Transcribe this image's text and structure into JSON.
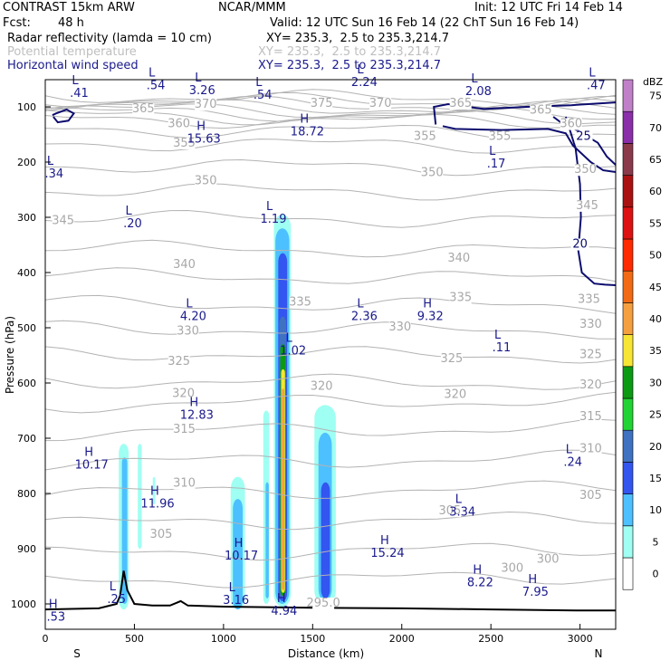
{
  "header": {
    "model": "CONTRAST 15km ARW",
    "center": "NCAR/MMM",
    "init": "Init: 12 UTC Fri 14 Feb 14",
    "fcst_label": "Fcst:",
    "fcst_value": "48 h",
    "valid": "Valid: 12 UTC Sun 16 Feb 14 (22 ChT Sun 16 Feb 14)",
    "fields": [
      {
        "name": "Radar reflectivity (lamda = 10 cm)",
        "xy": "XY= 235.3,  2.5 to 235.3,214.7",
        "color": "#000000"
      },
      {
        "name": "Potential temperature",
        "xy": "XY= 235.3,  2.5 to 235.3,214.7",
        "color": "#bfbfbf"
      },
      {
        "name": "Horizontal wind speed",
        "xy": "XY= 235.3,  2.5 to 235.3,214.7",
        "color": "#1a1a8c"
      }
    ]
  },
  "chart_data": {
    "type": "cross-section",
    "xlabel": "Distance (km)",
    "ylabel": "Pressure (hPa)",
    "xlim": [
      0,
      3200
    ],
    "ylim": [
      1020,
      50
    ],
    "x_ticks": [
      0,
      500,
      1000,
      1500,
      2000,
      2500,
      3000
    ],
    "y_ticks": [
      100,
      200,
      300,
      400,
      500,
      600,
      700,
      800,
      900,
      1000
    ],
    "x_endpoints": {
      "left": "S",
      "right": "N"
    },
    "colorbar": {
      "unit": "dBZ",
      "levels": [
        0,
        5,
        10,
        15,
        20,
        25,
        30,
        35,
        40,
        45,
        50,
        55,
        60,
        65,
        70,
        75
      ],
      "colors": [
        "#ffffff",
        "#9ffff2",
        "#4dc0ff",
        "#3355f0",
        "#3f72c0",
        "#22d433",
        "#0d9a13",
        "#f6e533",
        "#f5a040",
        "#f26b14",
        "#ff2a00",
        "#dd1111",
        "#aa1212",
        "#8a3a4a",
        "#8a2eaa",
        "#c080c8"
      ]
    },
    "theta_labels": [
      {
        "text": "365",
        "x": 550,
        "p": 110
      },
      {
        "text": "370",
        "x": 900,
        "p": 102
      },
      {
        "text": "375",
        "x": 1550,
        "p": 100
      },
      {
        "text": "370",
        "x": 1880,
        "p": 100
      },
      {
        "text": "365",
        "x": 2330,
        "p": 100
      },
      {
        "text": "365",
        "x": 2780,
        "p": 112
      },
      {
        "text": "360",
        "x": 750,
        "p": 137
      },
      {
        "text": "360",
        "x": 2950,
        "p": 137
      },
      {
        "text": "355",
        "x": 780,
        "p": 172
      },
      {
        "text": "355",
        "x": 2130,
        "p": 160
      },
      {
        "text": "355",
        "x": 2550,
        "p": 160
      },
      {
        "text": "350",
        "x": 900,
        "p": 240
      },
      {
        "text": "350",
        "x": 2170,
        "p": 225
      },
      {
        "text": "350",
        "x": 3030,
        "p": 220
      },
      {
        "text": "345",
        "x": 100,
        "p": 312
      },
      {
        "text": "345",
        "x": 3040,
        "p": 285
      },
      {
        "text": "340",
        "x": 780,
        "p": 392
      },
      {
        "text": "340",
        "x": 2320,
        "p": 380
      },
      {
        "text": "335",
        "x": 1430,
        "p": 460
      },
      {
        "text": "335",
        "x": 2330,
        "p": 452
      },
      {
        "text": "335",
        "x": 3050,
        "p": 455
      },
      {
        "text": "330",
        "x": 800,
        "p": 512
      },
      {
        "text": "330",
        "x": 1990,
        "p": 505
      },
      {
        "text": "330",
        "x": 3060,
        "p": 500
      },
      {
        "text": "325",
        "x": 750,
        "p": 567
      },
      {
        "text": "325",
        "x": 2280,
        "p": 562
      },
      {
        "text": "325",
        "x": 3060,
        "p": 555
      },
      {
        "text": "320",
        "x": 775,
        "p": 625
      },
      {
        "text": "320",
        "x": 1550,
        "p": 612
      },
      {
        "text": "320",
        "x": 2300,
        "p": 627
      },
      {
        "text": "320",
        "x": 3060,
        "p": 610
      },
      {
        "text": "315",
        "x": 780,
        "p": 690
      },
      {
        "text": "315",
        "x": 3060,
        "p": 667
      },
      {
        "text": "310",
        "x": 780,
        "p": 788
      },
      {
        "text": "310",
        "x": 3060,
        "p": 725
      },
      {
        "text": "305",
        "x": 650,
        "p": 880
      },
      {
        "text": "305",
        "x": 2270,
        "p": 838
      },
      {
        "text": "305",
        "x": 3060,
        "p": 810
      },
      {
        "text": "300",
        "x": 2620,
        "p": 942
      },
      {
        "text": "300",
        "x": 2820,
        "p": 925
      },
      {
        "text": "295.0",
        "x": 1560,
        "p": 1005
      }
    ],
    "wind_labels": [
      {
        "text": "25",
        "x": 3020,
        "p": 160
      },
      {
        "text": "20",
        "x": 3000,
        "p": 355
      }
    ],
    "extrema": [
      {
        "kind": "L",
        "value": ".41",
        "x": 190,
        "p": 82
      },
      {
        "kind": "L",
        "value": ".54",
        "x": 620,
        "p": 68
      },
      {
        "kind": "L",
        "value": "3.26",
        "x": 880,
        "p": 77
      },
      {
        "kind": "L",
        "value": ".54",
        "x": 1220,
        "p": 85
      },
      {
        "kind": "L",
        "value": "2.24",
        "x": 1790,
        "p": 62
      },
      {
        "kind": "L",
        "value": "2.08",
        "x": 2430,
        "p": 79
      },
      {
        "kind": "L",
        "value": ".47",
        "x": 3090,
        "p": 68
      },
      {
        "kind": "H",
        "value": "15.63",
        "x": 890,
        "p": 165
      },
      {
        "kind": "H",
        "value": "18.72",
        "x": 1470,
        "p": 152
      },
      {
        "kind": "L",
        "value": ".34",
        "x": 50,
        "p": 228
      },
      {
        "kind": "L",
        "value": ".17",
        "x": 2530,
        "p": 210
      },
      {
        "kind": "L",
        "value": ".20",
        "x": 490,
        "p": 318
      },
      {
        "kind": "L",
        "value": "1.19",
        "x": 1280,
        "p": 310
      },
      {
        "kind": "L",
        "value": "4.20",
        "x": 830,
        "p": 486
      },
      {
        "kind": "L",
        "value": "2.36",
        "x": 1790,
        "p": 486
      },
      {
        "kind": "H",
        "value": "9.32",
        "x": 2160,
        "p": 486
      },
      {
        "kind": "L",
        "value": "1.02",
        "x": 1390,
        "p": 548
      },
      {
        "kind": "L",
        "value": ".11",
        "x": 2560,
        "p": 543
      },
      {
        "kind": "H",
        "value": "12.83",
        "x": 850,
        "p": 665
      },
      {
        "kind": "H",
        "value": "10.17",
        "x": 260,
        "p": 755
      },
      {
        "kind": "L",
        "value": ".24",
        "x": 2960,
        "p": 750
      },
      {
        "kind": "H",
        "value": "11.96",
        "x": 630,
        "p": 825
      },
      {
        "kind": "L",
        "value": "3.34",
        "x": 2340,
        "p": 840
      },
      {
        "kind": "H",
        "value": "10.17",
        "x": 1100,
        "p": 920
      },
      {
        "kind": "H",
        "value": "15.24",
        "x": 1920,
        "p": 915
      },
      {
        "kind": "H",
        "value": "8.22",
        "x": 2440,
        "p": 968
      },
      {
        "kind": "H",
        "value": "7.95",
        "x": 2750,
        "p": 985
      },
      {
        "kind": "L",
        "value": ".25",
        "x": 400,
        "p": 998
      },
      {
        "kind": "L",
        "value": "3.16",
        "x": 1070,
        "p": 1000
      },
      {
        "kind": "H",
        "value": ".53",
        "x": 60,
        "p": 1030
      },
      {
        "kind": "H",
        "value": "4.94",
        "x": 1340,
        "p": 1020
      }
    ]
  }
}
